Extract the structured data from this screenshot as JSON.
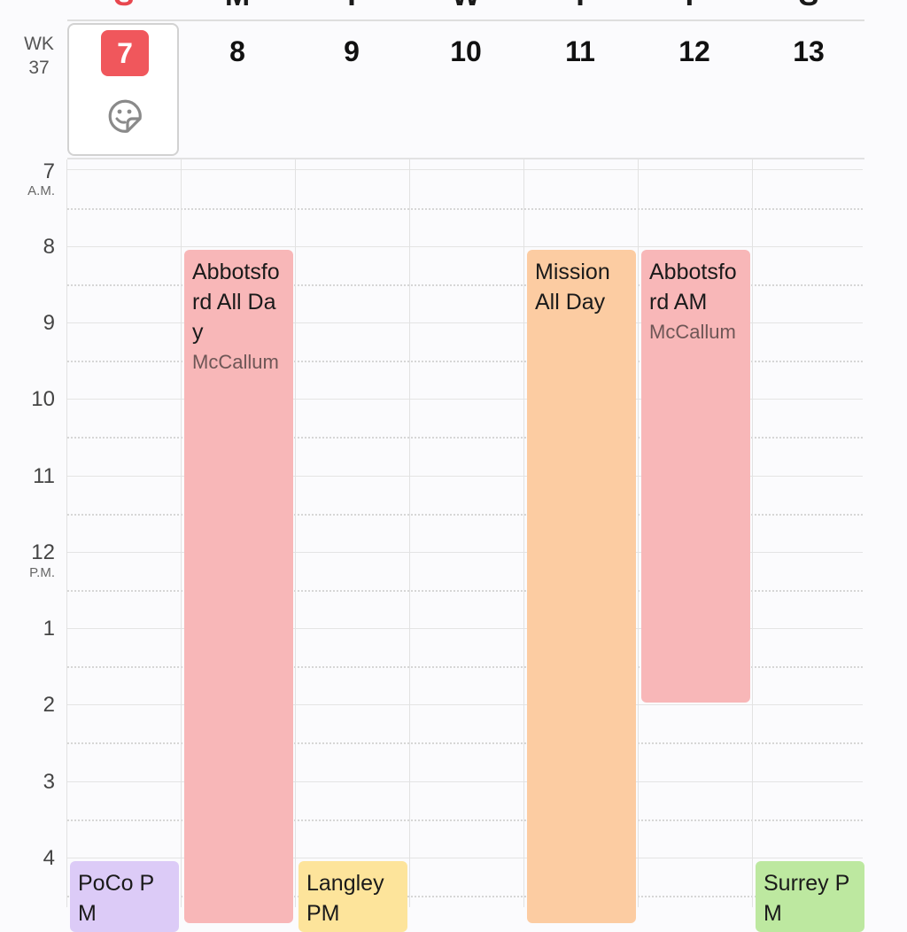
{
  "week": {
    "label": "WK",
    "number": "37"
  },
  "days": [
    {
      "dow": "S",
      "date": "7",
      "today": true
    },
    {
      "dow": "M",
      "date": "8"
    },
    {
      "dow": "T",
      "date": "9"
    },
    {
      "dow": "W",
      "date": "10"
    },
    {
      "dow": "T",
      "date": "11"
    },
    {
      "dow": "F",
      "date": "12"
    },
    {
      "dow": "S",
      "date": "13"
    }
  ],
  "hours": [
    {
      "label": "7",
      "suffix": "A.M."
    },
    {
      "label": "8"
    },
    {
      "label": "9"
    },
    {
      "label": "10"
    },
    {
      "label": "11"
    },
    {
      "label": "12",
      "suffix": "P.M."
    },
    {
      "label": "1"
    },
    {
      "label": "2"
    },
    {
      "label": "3"
    },
    {
      "label": "4"
    }
  ],
  "events": [
    {
      "title": "Abbotsford All Day",
      "location": "McCallum",
      "day": "8",
      "start": "8:00",
      "end": "",
      "color": "#f8b7b8"
    },
    {
      "title": "Mission All Day",
      "location": "",
      "day": "11",
      "start": "8:00",
      "end": "",
      "color": "#fccca2"
    },
    {
      "title": "Abbotsford AM",
      "location": "McCallum",
      "day": "12",
      "start": "8:00",
      "end": "2:00",
      "color": "#f8b7b8"
    },
    {
      "title": "PoCo PM",
      "location": "",
      "day": "7",
      "start": "4:00",
      "end": "",
      "color": "#dccbf7"
    },
    {
      "title": "Langley PM",
      "location": "",
      "day": "9",
      "start": "4:00",
      "end": "",
      "color": "#fde49b"
    },
    {
      "title": "Surrey PM",
      "location": "",
      "day": "13",
      "start": "4:00",
      "end": "",
      "color": "#bde8a0"
    }
  ],
  "icons": {
    "sticker": "sticker-smiley-icon"
  },
  "colors": {
    "today": "#f0575c",
    "today_dow": "#e8474f"
  }
}
